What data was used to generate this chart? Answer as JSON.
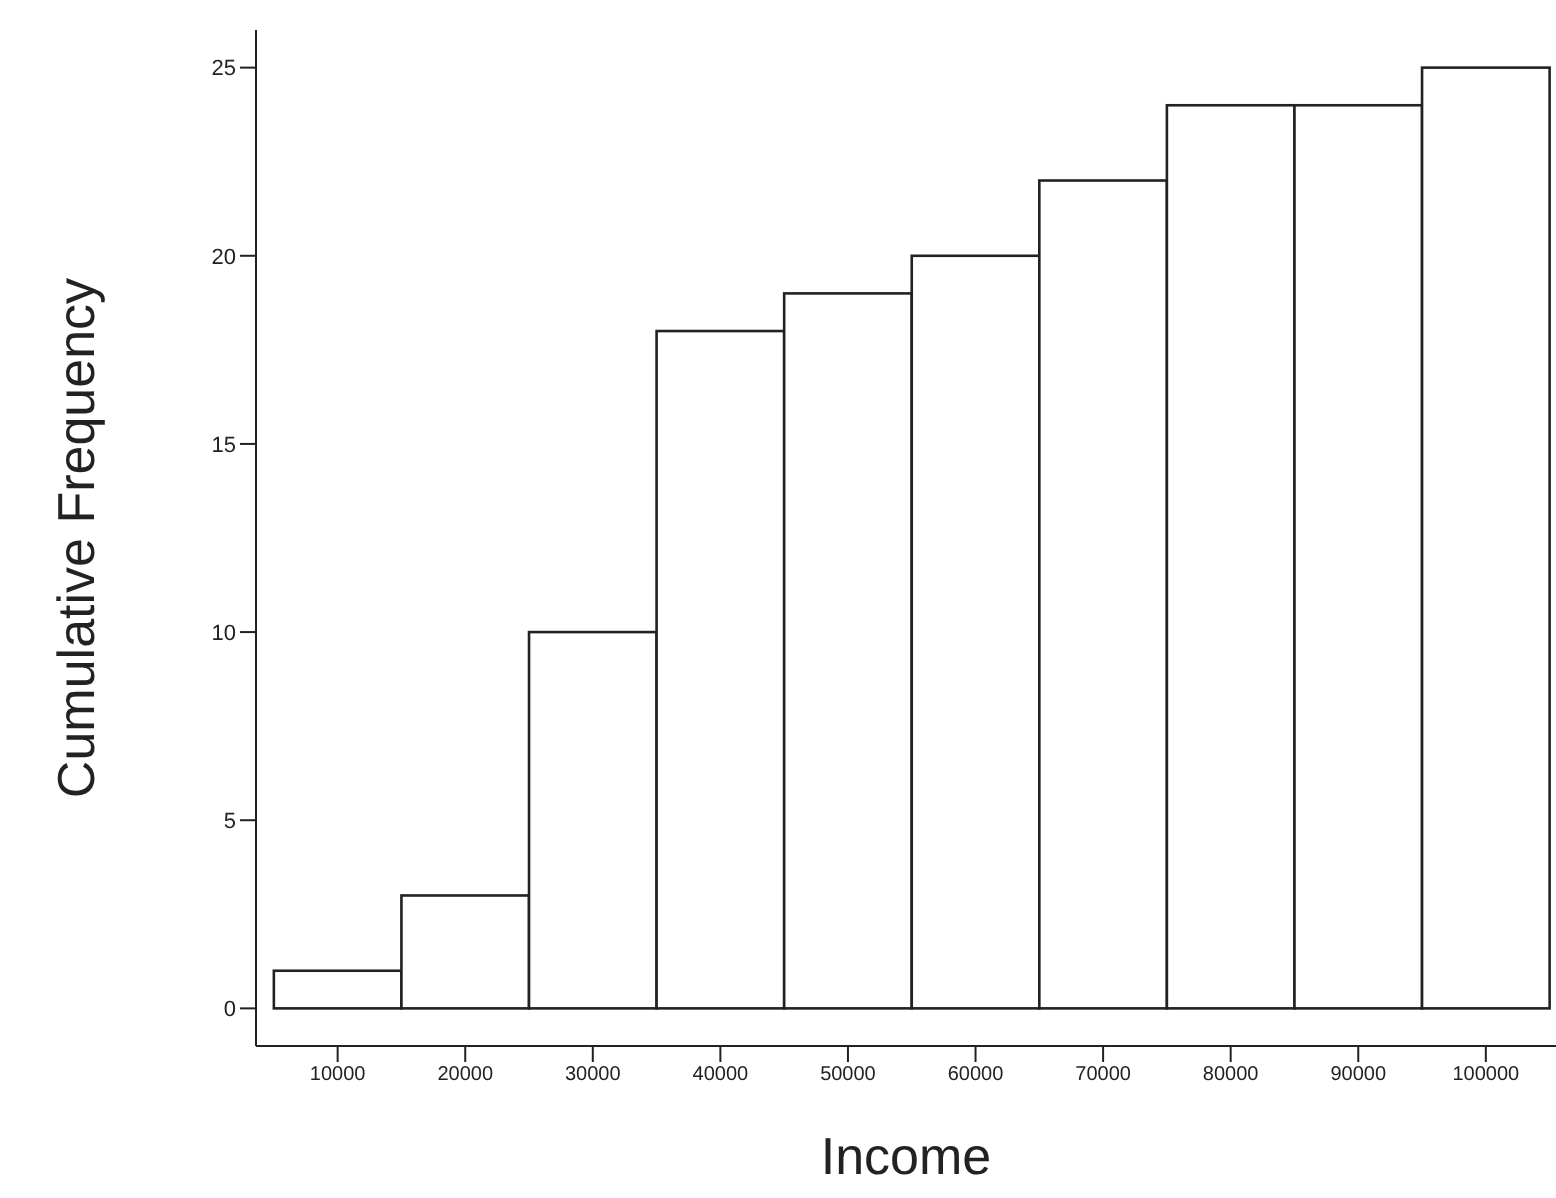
{
  "chart_data": {
    "type": "histogram",
    "xlabel": "Income",
    "ylabel": "Cumulative Frequency",
    "bins": [
      5000,
      15000,
      25000,
      35000,
      45000,
      55000,
      65000,
      75000,
      85000,
      95000,
      105000
    ],
    "values": [
      1,
      3,
      10,
      18,
      19,
      20,
      22,
      24,
      24,
      25
    ],
    "color": "#ffffff",
    "xlim": [
      3600,
      105500
    ],
    "xticks": [
      10000,
      20000,
      30000,
      40000,
      50000,
      60000,
      70000,
      80000,
      90000,
      100000
    ],
    "ylim": [
      -1,
      26
    ],
    "yticks": [
      0,
      5,
      10,
      15,
      20,
      25
    ],
    "grid": false,
    "legend": false
  }
}
